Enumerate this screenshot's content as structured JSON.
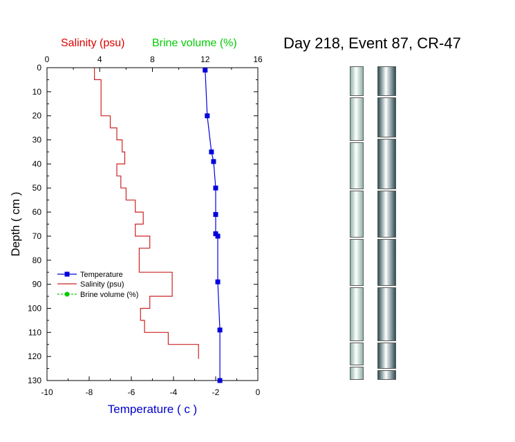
{
  "title": "Day 218, Event 87, CR-47",
  "chart_data": {
    "type": "line",
    "ylabel": "Depth ( cm )",
    "ylim": [
      130,
      0
    ],
    "yticks": [
      0,
      10,
      20,
      30,
      40,
      50,
      60,
      70,
      80,
      90,
      100,
      110,
      120,
      130
    ],
    "bottom_axis": {
      "label": "Temperature ( c )",
      "label_color": "#0000cc",
      "lim": [
        -10,
        0
      ],
      "ticks": [
        -10,
        -8,
        -6,
        -4,
        -2,
        0
      ]
    },
    "top_axis": {
      "labels": [
        {
          "text": "Salinity (psu)",
          "color": "#dd0000"
        },
        {
          "text": "Brine volume (%)",
          "color": "#00cc00"
        }
      ],
      "lim": [
        0,
        16
      ],
      "ticks": [
        0,
        4,
        8,
        12,
        16
      ]
    },
    "legend_position": "bottom-left",
    "series": [
      {
        "name": "Temperature",
        "axis": "bottom",
        "color": "#0000dd",
        "marker": "square",
        "points": [
          {
            "x": -2.5,
            "y": 1
          },
          {
            "x": -2.4,
            "y": 20
          },
          {
            "x": -2.2,
            "y": 35
          },
          {
            "x": -2.1,
            "y": 39
          },
          {
            "x": -2.0,
            "y": 50
          },
          {
            "x": -2.0,
            "y": 61
          },
          {
            "x": -2.0,
            "y": 69
          },
          {
            "x": -1.9,
            "y": 70
          },
          {
            "x": -1.9,
            "y": 89
          },
          {
            "x": -1.8,
            "y": 109
          },
          {
            "x": -1.8,
            "y": 130
          }
        ]
      },
      {
        "name": "Salinity (psu)",
        "axis": "top",
        "color": "#cc2222",
        "style": "step",
        "points": [
          {
            "x": 3.6,
            "y": 0
          },
          {
            "x": 3.6,
            "y": 5
          },
          {
            "x": 4.1,
            "y": 5
          },
          {
            "x": 4.1,
            "y": 20
          },
          {
            "x": 4.8,
            "y": 20
          },
          {
            "x": 4.8,
            "y": 25
          },
          {
            "x": 5.3,
            "y": 25
          },
          {
            "x": 5.3,
            "y": 30
          },
          {
            "x": 5.7,
            "y": 30
          },
          {
            "x": 5.7,
            "y": 35
          },
          {
            "x": 5.9,
            "y": 35
          },
          {
            "x": 5.9,
            "y": 40
          },
          {
            "x": 5.3,
            "y": 40
          },
          {
            "x": 5.3,
            "y": 45
          },
          {
            "x": 5.6,
            "y": 45
          },
          {
            "x": 5.6,
            "y": 50
          },
          {
            "x": 6.0,
            "y": 50
          },
          {
            "x": 6.0,
            "y": 55
          },
          {
            "x": 6.7,
            "y": 55
          },
          {
            "x": 6.7,
            "y": 60
          },
          {
            "x": 7.3,
            "y": 60
          },
          {
            "x": 7.3,
            "y": 65
          },
          {
            "x": 6.7,
            "y": 65
          },
          {
            "x": 6.7,
            "y": 70
          },
          {
            "x": 7.8,
            "y": 70
          },
          {
            "x": 7.8,
            "y": 75
          },
          {
            "x": 7.0,
            "y": 75
          },
          {
            "x": 7.0,
            "y": 85
          },
          {
            "x": 9.5,
            "y": 85
          },
          {
            "x": 9.5,
            "y": 95
          },
          {
            "x": 7.8,
            "y": 95
          },
          {
            "x": 7.8,
            "y": 100
          },
          {
            "x": 7.1,
            "y": 100
          },
          {
            "x": 7.1,
            "y": 105
          },
          {
            "x": 7.4,
            "y": 105
          },
          {
            "x": 7.4,
            "y": 110
          },
          {
            "x": 9.2,
            "y": 110
          },
          {
            "x": 9.2,
            "y": 115
          },
          {
            "x": 11.5,
            "y": 115
          },
          {
            "x": 11.5,
            "y": 121
          }
        ]
      },
      {
        "name": "Brine volume (%)",
        "axis": "top",
        "color": "#00cc00",
        "marker": "circle",
        "points": []
      }
    ]
  },
  "core_photos": {
    "left_color": "#8fb3a8",
    "right_color": "#2f4f55"
  }
}
